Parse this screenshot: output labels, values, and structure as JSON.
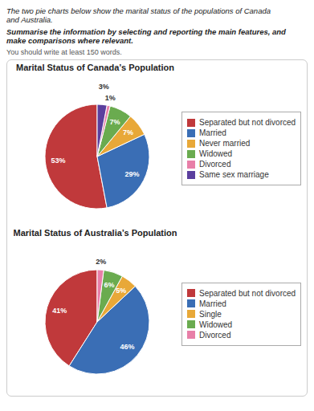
{
  "chart_data": [
    {
      "type": "pie",
      "title": "Marital Status of Canada’s Population",
      "annotations": [
        "The two pie charts below show the marital status of the populations of Canada\nand Australia.",
        "Summarise the information by selecting and reporting the main features, and\nmake comparisons where relevant.",
        "You should write at least 150 words."
      ],
      "categories": [
        "Separated but not divorced",
        "Married",
        "Never married",
        "Widowed",
        "Divorced",
        "Same sex marriage"
      ],
      "values": [
        53,
        29,
        7,
        7,
        1,
        3
      ],
      "value_labels": [
        "53%",
        "29%",
        "7%",
        "7%",
        "1%",
        "3%"
      ],
      "colors": [
        "#c0393b",
        "#3a6eb5",
        "#e8a838",
        "#6aab4f",
        "#e87fa8",
        "#5b3f9e"
      ],
      "data_labels": true,
      "legend": "right"
    },
    {
      "type": "pie",
      "title": "Marital Status of Australia’s Population",
      "categories": [
        "Separated but not divorced",
        "Married",
        "Single",
        "Widowed",
        "Divorced"
      ],
      "values": [
        41,
        46,
        5,
        6,
        2
      ],
      "value_labels": [
        "41%",
        "46%",
        "5%",
        "6%",
        "2%"
      ],
      "colors": [
        "#c0393b",
        "#3a6eb5",
        "#e8a838",
        "#6aab4f",
        "#e87fa8"
      ],
      "data_labels": true,
      "legend": "right"
    }
  ]
}
